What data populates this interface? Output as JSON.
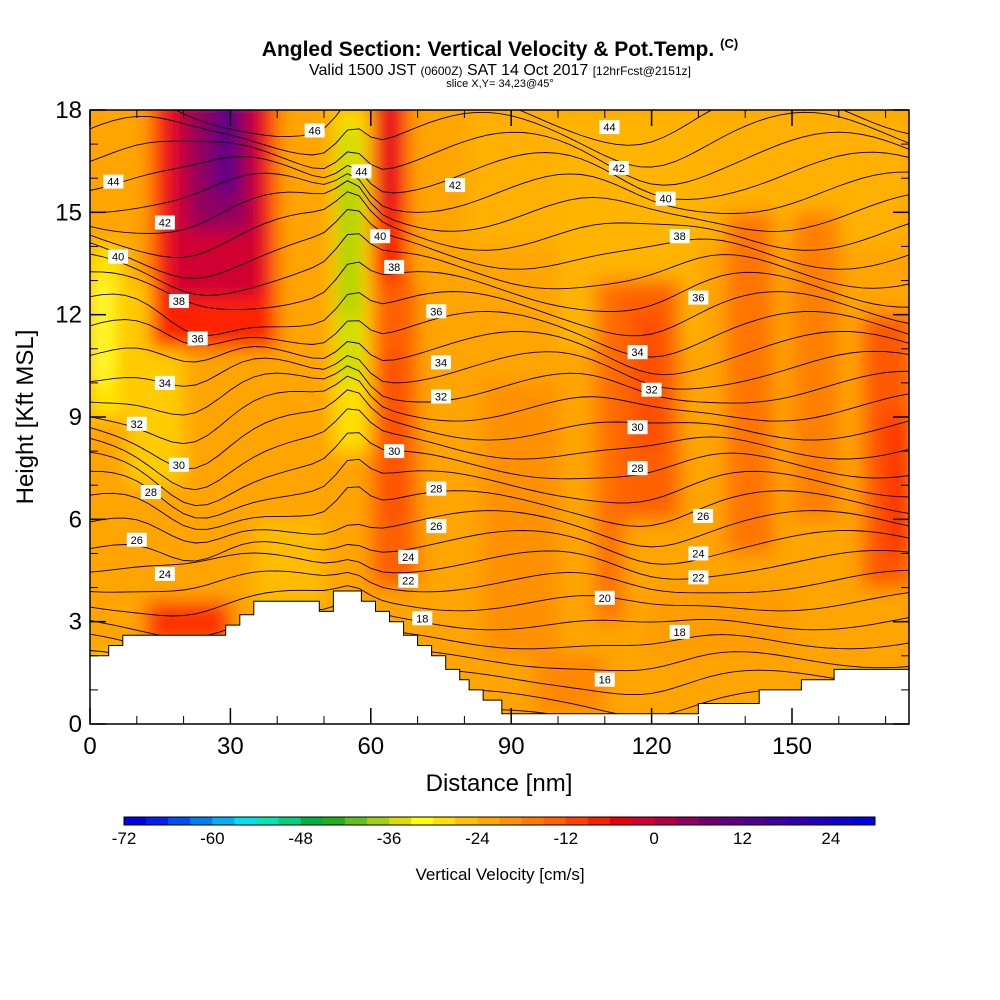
{
  "chart_data": {
    "type": "heatmap",
    "title": "Angled Section: Vertical Velocity & Pot.Temp.",
    "title_units": "(C)",
    "subtitle": {
      "valid_prefix": "Valid 1500 JST",
      "zulu": "(0600Z)",
      "date": "SAT 14 Oct 2017",
      "forecast": "[12hrFcst@2151z]"
    },
    "slice_label": "slice X,Y= 34,23@45°",
    "xlabel": "Distance [nm]",
    "ylabel": "Height [Kft MSL]",
    "xlim": [
      0,
      175
    ],
    "ylim": [
      0,
      18
    ],
    "x_ticks": [
      0,
      30,
      60,
      90,
      120,
      150
    ],
    "y_ticks": [
      0,
      3,
      6,
      9,
      12,
      15,
      18
    ],
    "colorbar": {
      "label": "Vertical Velocity [cm/s]",
      "tick_labels": [
        "-72",
        "-60",
        "-48",
        "-36",
        "-24",
        "-12",
        "0",
        "12",
        "24"
      ],
      "min": -72,
      "max": 30,
      "step": 3,
      "colors": [
        "#0000e0",
        "#0020f0",
        "#0050f0",
        "#0080f0",
        "#00b0f0",
        "#00e0f0",
        "#00e8b0",
        "#00d080",
        "#00b040",
        "#20b020",
        "#60c020",
        "#a0d010",
        "#d8e000",
        "#ffff00",
        "#ffe000",
        "#ffc000",
        "#ffa800",
        "#ff9000",
        "#ff7800",
        "#ff6000",
        "#ff4000",
        "#f82000",
        "#e80010",
        "#d00030",
        "#b00040",
        "#900060",
        "#700070",
        "#600080",
        "#500090",
        "#4000a0",
        "#3000b0",
        "#2000c0",
        "#1000d0",
        "#0000e0"
      ]
    },
    "contour_variable": "Potential Temperature (C)",
    "contour_labels": [
      {
        "value": "46",
        "x": 48,
        "y": 17.4
      },
      {
        "value": "44",
        "x": 5,
        "y": 15.9
      },
      {
        "value": "44",
        "x": 58,
        "y": 16.2
      },
      {
        "value": "44",
        "x": 111,
        "y": 17.5
      },
      {
        "value": "42",
        "x": 16,
        "y": 14.7
      },
      {
        "value": "42",
        "x": 78,
        "y": 15.8
      },
      {
        "value": "42",
        "x": 113,
        "y": 16.3
      },
      {
        "value": "40",
        "x": 6,
        "y": 13.7
      },
      {
        "value": "40",
        "x": 62,
        "y": 14.3
      },
      {
        "value": "40",
        "x": 123,
        "y": 15.4
      },
      {
        "value": "38",
        "x": 19,
        "y": 12.4
      },
      {
        "value": "38",
        "x": 65,
        "y": 13.4
      },
      {
        "value": "38",
        "x": 126,
        "y": 14.3
      },
      {
        "value": "36",
        "x": 23,
        "y": 11.3
      },
      {
        "value": "36",
        "x": 74,
        "y": 12.1
      },
      {
        "value": "36",
        "x": 130,
        "y": 12.5
      },
      {
        "value": "34",
        "x": 16,
        "y": 10.0
      },
      {
        "value": "34",
        "x": 75,
        "y": 10.6
      },
      {
        "value": "34",
        "x": 117,
        "y": 10.9
      },
      {
        "value": "32",
        "x": 10,
        "y": 8.8
      },
      {
        "value": "32",
        "x": 75,
        "y": 9.6
      },
      {
        "value": "32",
        "x": 120,
        "y": 9.8
      },
      {
        "value": "30",
        "x": 19,
        "y": 7.6
      },
      {
        "value": "30",
        "x": 65,
        "y": 8.0
      },
      {
        "value": "30",
        "x": 117,
        "y": 8.7
      },
      {
        "value": "28",
        "x": 13,
        "y": 6.8
      },
      {
        "value": "28",
        "x": 74,
        "y": 6.9
      },
      {
        "value": "28",
        "x": 117,
        "y": 7.5
      },
      {
        "value": "26",
        "x": 10,
        "y": 5.4
      },
      {
        "value": "26",
        "x": 74,
        "y": 5.8
      },
      {
        "value": "26",
        "x": 131,
        "y": 6.1
      },
      {
        "value": "24",
        "x": 16,
        "y": 4.4
      },
      {
        "value": "24",
        "x": 68,
        "y": 4.9
      },
      {
        "value": "24",
        "x": 130,
        "y": 5.0
      },
      {
        "value": "22",
        "x": 68,
        "y": 4.2
      },
      {
        "value": "22",
        "x": 130,
        "y": 4.3
      },
      {
        "value": "20",
        "x": 110,
        "y": 3.7
      },
      {
        "value": "18",
        "x": 71,
        "y": 3.1
      },
      {
        "value": "18",
        "x": 126,
        "y": 2.7
      },
      {
        "value": "16",
        "x": 110,
        "y": 1.3
      }
    ],
    "terrain_profile": [
      [
        0,
        2.0
      ],
      [
        4,
        2.0
      ],
      [
        4,
        2.3
      ],
      [
        7,
        2.3
      ],
      [
        7,
        2.6
      ],
      [
        29,
        2.6
      ],
      [
        29,
        2.9
      ],
      [
        32,
        2.9
      ],
      [
        32,
        3.2
      ],
      [
        35,
        3.2
      ],
      [
        35,
        3.6
      ],
      [
        49,
        3.6
      ],
      [
        49,
        3.3
      ],
      [
        52,
        3.3
      ],
      [
        52,
        3.9
      ],
      [
        58,
        3.9
      ],
      [
        58,
        3.6
      ],
      [
        61,
        3.6
      ],
      [
        61,
        3.3
      ],
      [
        64,
        3.3
      ],
      [
        64,
        3.0
      ],
      [
        67,
        3.0
      ],
      [
        67,
        2.6
      ],
      [
        70,
        2.6
      ],
      [
        70,
        2.3
      ],
      [
        73,
        2.3
      ],
      [
        73,
        2.0
      ],
      [
        76,
        2.0
      ],
      [
        76,
        1.6
      ],
      [
        79,
        1.6
      ],
      [
        79,
        1.3
      ],
      [
        81,
        1.3
      ],
      [
        81,
        1.0
      ],
      [
        84,
        1.0
      ],
      [
        84,
        0.7
      ],
      [
        88,
        0.7
      ],
      [
        88,
        0.3
      ],
      [
        130,
        0.3
      ],
      [
        130,
        0.6
      ],
      [
        143,
        0.6
      ],
      [
        143,
        1.0
      ],
      [
        152,
        1.0
      ],
      [
        152,
        1.3
      ],
      [
        159,
        1.3
      ],
      [
        159,
        1.6
      ],
      [
        175,
        1.6
      ]
    ]
  }
}
